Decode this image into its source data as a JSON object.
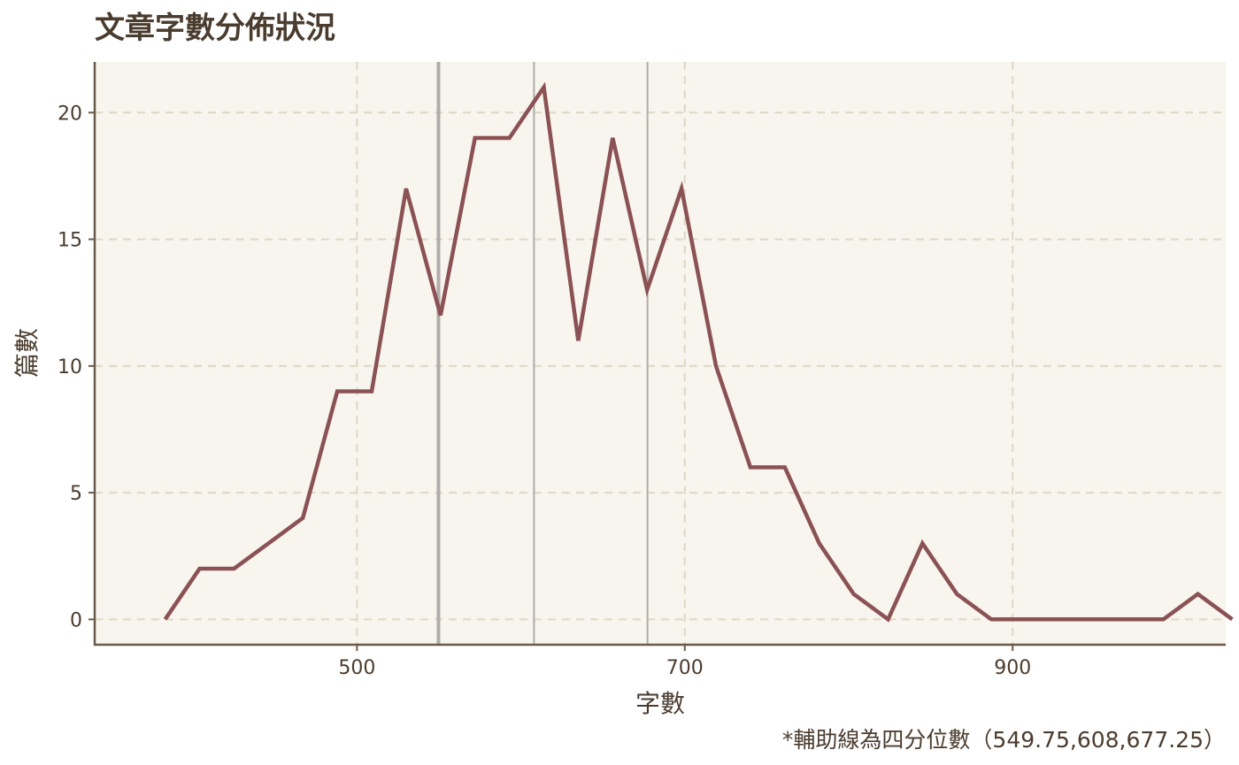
{
  "chart_data": {
    "type": "line",
    "title": "文章字數分佈狀況",
    "xlabel": "字數",
    "ylabel": "篇數",
    "caption": "*輔助線為四分位數（549.75,608,677.25）",
    "xlim": [
      340,
      1030
    ],
    "ylim": [
      -1,
      22
    ],
    "x_ticks": [
      500,
      700,
      900
    ],
    "y_ticks": [
      0,
      5,
      10,
      15,
      20
    ],
    "grid": true,
    "x": [
      383,
      404,
      425,
      446,
      467,
      488,
      509,
      530,
      551,
      572,
      593,
      614,
      635,
      656,
      677,
      698,
      719,
      740,
      761,
      782,
      803,
      824,
      845,
      866,
      887,
      908,
      929,
      950,
      971,
      992,
      1013,
      1034
    ],
    "series": [
      {
        "values": [
          0,
          2,
          2,
          3,
          4,
          9,
          9,
          17,
          12,
          19,
          19,
          21,
          11,
          19,
          13,
          17,
          10,
          6,
          6,
          3,
          1,
          0,
          3,
          1,
          0,
          0,
          0,
          0,
          0,
          0,
          1,
          0
        ],
        "color": "#8a5254"
      }
    ],
    "reference_lines": [
      549.75,
      608,
      677.25
    ],
    "colors": {
      "panel_bg": "#f8f4ee",
      "grid": "#ddd8c4",
      "axis": "#6b5a4a",
      "reference": "#b0acaa"
    }
  }
}
